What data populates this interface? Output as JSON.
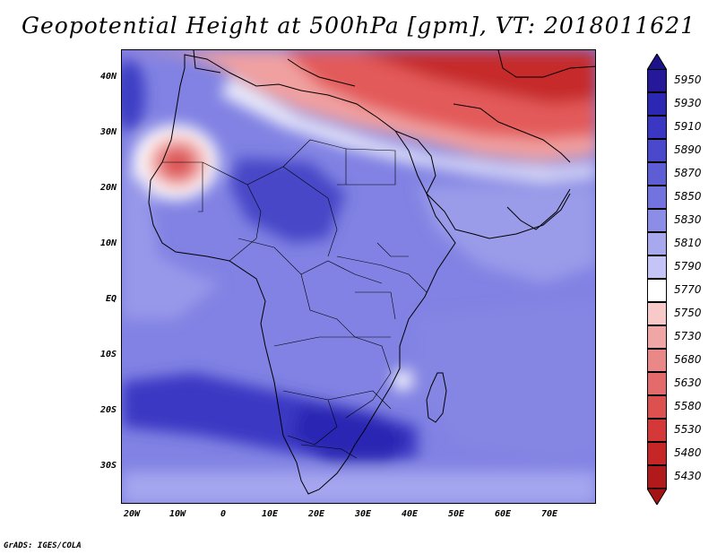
{
  "title": "Geopotential Height at 500hPa [gpm], VT: 2018011621",
  "credit": "GrADS: IGES/COLA",
  "map": {
    "lat_labels": [
      "40N",
      "30N",
      "20N",
      "10N",
      "EQ",
      "10S",
      "20S",
      "30S"
    ],
    "lon_labels": [
      "20W",
      "10W",
      "0",
      "10E",
      "20E",
      "30E",
      "40E",
      "50E",
      "60E",
      "70E"
    ]
  },
  "legend": {
    "levels": [
      {
        "label": "5950",
        "color": "#25199a"
      },
      {
        "label": "5930",
        "color": "#2d28b4"
      },
      {
        "label": "5910",
        "color": "#3a38c2"
      },
      {
        "label": "5890",
        "color": "#4a49cc"
      },
      {
        "label": "5870",
        "color": "#5d5dd6"
      },
      {
        "label": "5850",
        "color": "#7373df"
      },
      {
        "label": "5830",
        "color": "#8c8de7"
      },
      {
        "label": "5810",
        "color": "#a7a8ee"
      },
      {
        "label": "5790",
        "color": "#c4c5f6"
      },
      {
        "label": "5770",
        "color": "#ffffff"
      },
      {
        "label": "5750",
        "color": "#f7c9c9"
      },
      {
        "label": "5730",
        "color": "#f1a6a6"
      },
      {
        "label": "5680",
        "color": "#ea8787"
      },
      {
        "label": "5630",
        "color": "#e46b6b"
      },
      {
        "label": "5580",
        "color": "#dc5050"
      },
      {
        "label": "5530",
        "color": "#d43838"
      },
      {
        "label": "5480",
        "color": "#c62626"
      },
      {
        "label": "5430",
        "color": "#b11a1a"
      }
    ],
    "top_arrow_color": "#1c128a",
    "bottom_arrow_color": "#a51414"
  }
}
